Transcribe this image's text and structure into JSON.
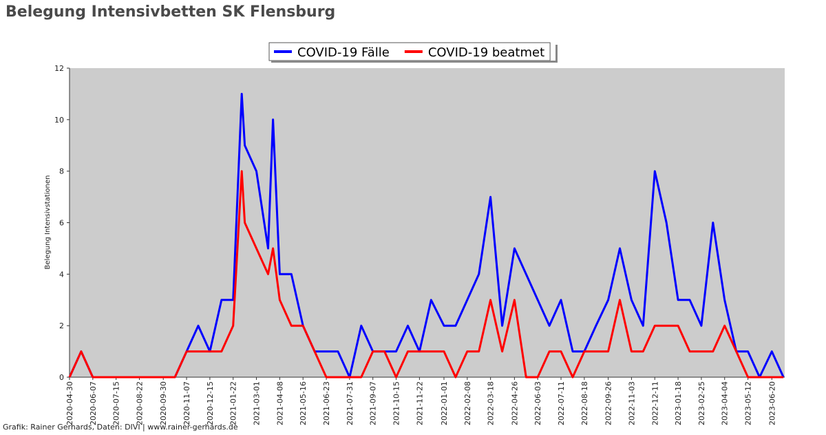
{
  "chart_data": {
    "type": "line",
    "title": "Belegung Intensivbetten SK Flensburg",
    "ylabel": "Belegung Intensivstationen",
    "credit": "Grafik: Rainer Gerhards, Daten: DIVI | www.rainer-gerhards.de",
    "x": [
      "2020-04-30",
      "2020-05-19",
      "2020-06-07",
      "2020-06-26",
      "2020-07-15",
      "2020-08-03",
      "2020-08-22",
      "2020-09-10",
      "2020-09-30",
      "2020-10-19",
      "2020-11-07",
      "2020-11-26",
      "2020-12-15",
      "2021-01-03",
      "2021-01-22",
      "2021-02-05",
      "2021-02-10",
      "2021-03-01",
      "2021-03-20",
      "2021-03-28",
      "2021-04-08",
      "2021-04-27",
      "2021-05-16",
      "2021-06-04",
      "2021-06-23",
      "2021-07-12",
      "2021-07-31",
      "2021-08-19",
      "2021-09-07",
      "2021-09-26",
      "2021-10-15",
      "2021-11-03",
      "2021-11-22",
      "2021-12-11",
      "2022-01-01",
      "2022-01-20",
      "2022-02-08",
      "2022-02-27",
      "2022-03-18",
      "2022-04-06",
      "2022-04-26",
      "2022-05-15",
      "2022-06-03",
      "2022-06-22",
      "2022-07-11",
      "2022-07-30",
      "2022-08-18",
      "2022-09-06",
      "2022-09-26",
      "2022-10-15",
      "2022-11-03",
      "2022-11-22",
      "2022-12-11",
      "2022-12-30",
      "2023-01-18",
      "2023-02-06",
      "2023-02-25",
      "2023-03-16",
      "2023-04-04",
      "2023-04-23",
      "2023-05-12",
      "2023-05-31",
      "2023-06-20",
      "2023-07-09"
    ],
    "series": [
      {
        "name": "COVID-19 Fälle",
        "color": "#0000ff",
        "values": [
          0,
          1,
          0,
          0,
          0,
          0,
          0,
          0,
          0,
          0,
          1,
          2,
          1,
          3,
          3,
          11,
          9,
          8,
          5,
          10,
          4,
          4,
          2,
          1,
          1,
          1,
          0,
          2,
          1,
          1,
          1,
          2,
          1,
          3,
          2,
          2,
          3,
          4,
          7,
          2,
          5,
          4,
          3,
          2,
          3,
          1,
          1,
          2,
          3,
          5,
          3,
          2,
          8,
          6,
          3,
          3,
          2,
          6,
          3,
          1,
          1,
          0,
          1,
          0
        ]
      },
      {
        "name": "COVID-19 beatmet",
        "color": "#ff0000",
        "values": [
          0,
          1,
          0,
          0,
          0,
          0,
          0,
          0,
          0,
          0,
          1,
          1,
          1,
          1,
          2,
          8,
          6,
          5,
          4,
          5,
          3,
          2,
          2,
          1,
          0,
          0,
          0,
          0,
          1,
          1,
          0,
          1,
          1,
          1,
          1,
          0,
          1,
          1,
          3,
          1,
          3,
          0,
          0,
          1,
          1,
          0,
          1,
          1,
          1,
          3,
          1,
          1,
          2,
          2,
          2,
          1,
          1,
          1,
          2,
          1,
          0,
          0,
          0,
          0
        ]
      }
    ],
    "xlim": [
      "2020-04-30",
      "2023-07-11"
    ],
    "xticks": [
      "2020-04-30",
      "2020-06-07",
      "2020-07-15",
      "2020-08-22",
      "2020-09-30",
      "2020-11-07",
      "2020-12-15",
      "2021-01-22",
      "2021-03-01",
      "2021-04-08",
      "2021-05-16",
      "2021-06-23",
      "2021-07-31",
      "2021-09-07",
      "2021-10-15",
      "2021-11-22",
      "2022-01-01",
      "2022-02-08",
      "2022-03-18",
      "2022-04-26",
      "2022-06-03",
      "2022-07-11",
      "2022-08-18",
      "2022-09-26",
      "2022-11-03",
      "2022-12-11",
      "2023-01-18",
      "2023-02-25",
      "2023-04-04",
      "2023-05-12",
      "2023-06-20"
    ],
    "ylim": [
      0,
      12
    ],
    "yticks": [
      0,
      2,
      4,
      6,
      8,
      10,
      12
    ],
    "grid": false,
    "legend": "top"
  }
}
